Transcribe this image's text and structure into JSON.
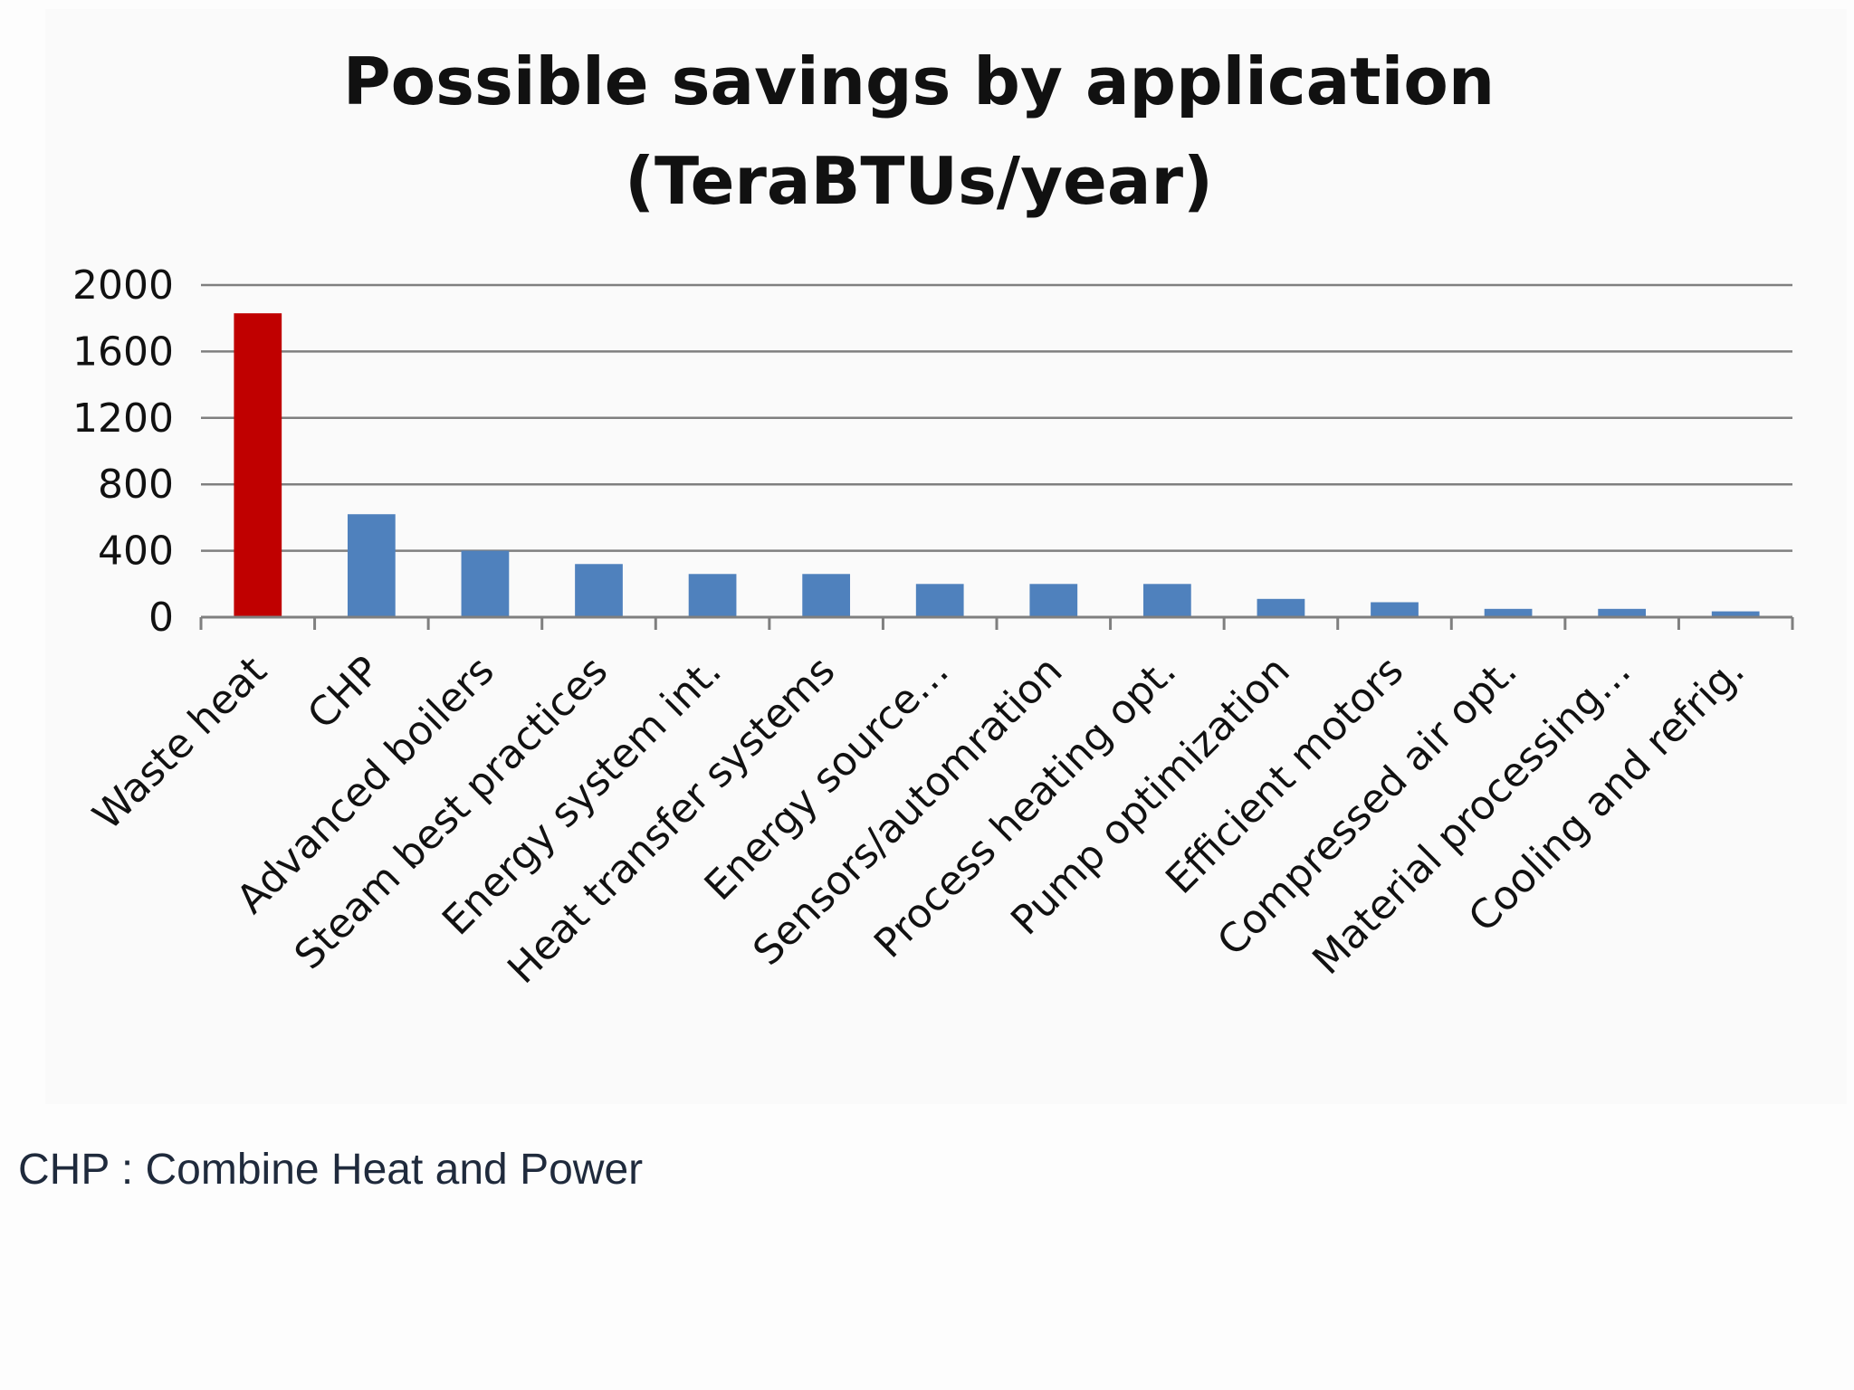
{
  "chart_data": {
    "type": "bar",
    "title": "Possible savings by application",
    "subtitle": "(TeraBTUs/year)",
    "xlabel": "",
    "ylabel": "",
    "ylim": [
      0,
      2000
    ],
    "yticks": [
      0,
      400,
      800,
      1200,
      1600,
      2000
    ],
    "grid": true,
    "legend": "none",
    "categories": [
      "Waste heat",
      "CHP",
      "Advanced boilers",
      "Steam best practices",
      "Energy system int.",
      "Heat transfer systems",
      "Energy source…",
      "Sensors/automration",
      "Process heating opt.",
      "Pump optimization",
      "Efficient motors",
      "Compressed air opt.",
      "Material processing…",
      "Cooling and refrig."
    ],
    "values": [
      1830,
      620,
      400,
      320,
      260,
      260,
      200,
      200,
      200,
      110,
      90,
      50,
      50,
      35
    ],
    "colors": {
      "highlight": "#c00000",
      "default": "#4f81bd",
      "grid": "#7f7f7f",
      "axis": "#7f7f7f"
    },
    "highlight_index": 0
  },
  "footnote": "CHP : Combine Heat and Power"
}
